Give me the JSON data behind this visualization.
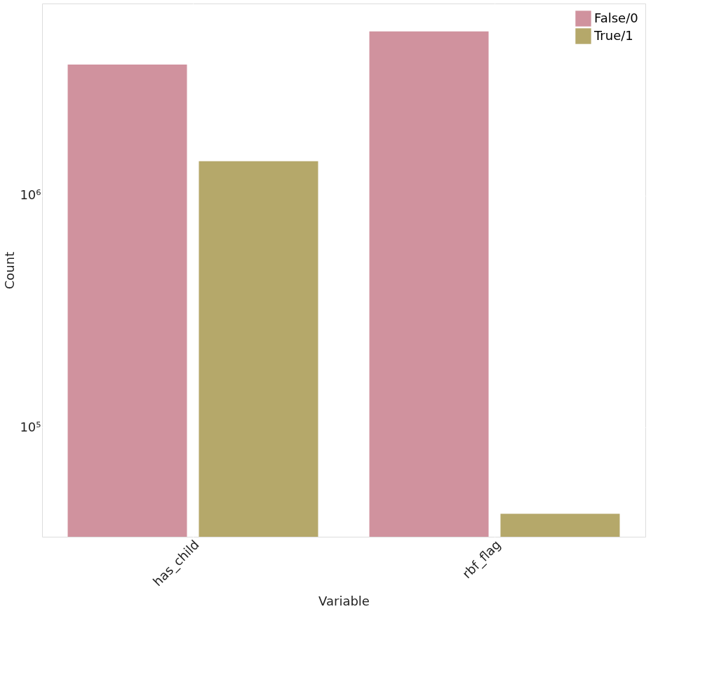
{
  "chart_data": {
    "type": "bar",
    "xlabel": "Variable",
    "ylabel": "Count",
    "categories": [
      "has_child",
      "rbf_flag"
    ],
    "series": [
      {
        "name": "False/0",
        "color": "#d0929e",
        "values": [
          3680000,
          5120000
        ]
      },
      {
        "name": "True/1",
        "color": "#b5a86a",
        "values": [
          1410000,
          42500
        ]
      }
    ],
    "log": true,
    "ylim": [
      33800,
      6750000
    ],
    "yticks": [
      {
        "value": 100000,
        "label": "10⁵"
      },
      {
        "value": 1000000,
        "label": "10⁶"
      }
    ],
    "grid": true,
    "legend": "top right"
  }
}
